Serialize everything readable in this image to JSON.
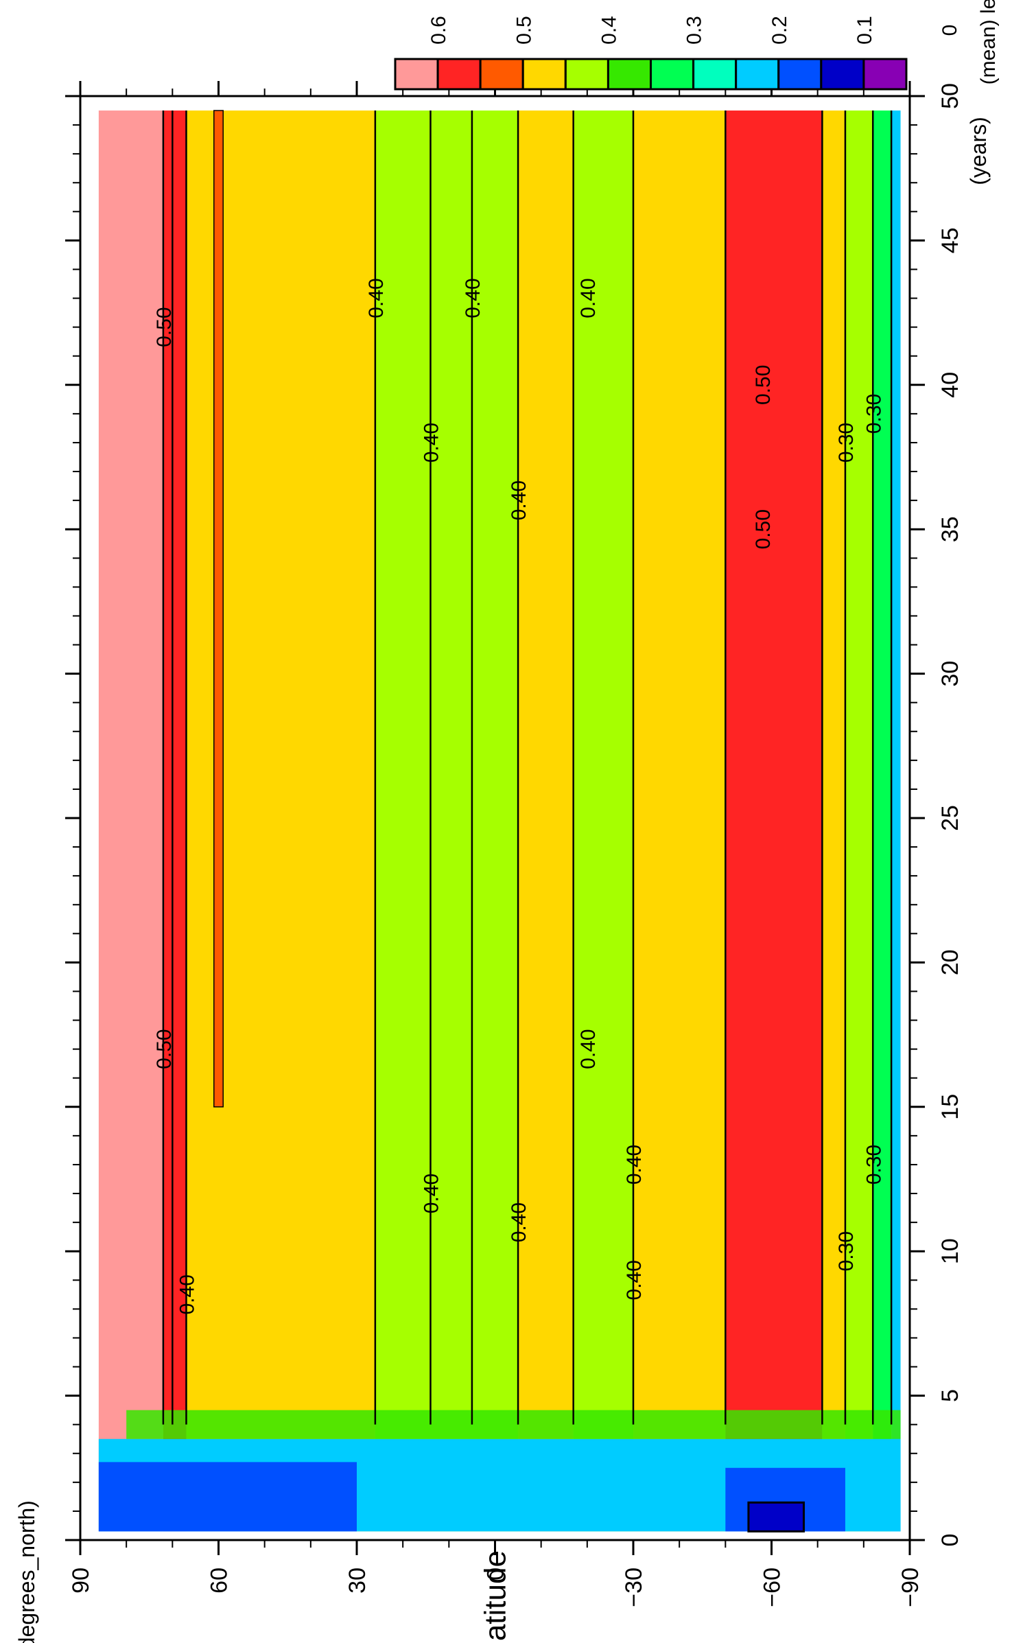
{
  "chart_data": {
    "type": "heatmap",
    "subtype": "filled-contour",
    "orientation": "rotated-90-clockwise",
    "xlabel": "(years)",
    "ylabel": "latitude",
    "yunits": "(degrees_north)",
    "colorbar_title": "(mean) le",
    "xlim": [
      0,
      50
    ],
    "ylim": [
      -90,
      90
    ],
    "x_ticks": [
      0,
      5,
      10,
      15,
      20,
      25,
      30,
      35,
      40,
      45,
      50
    ],
    "x_tick_labels": [
      "0",
      "5",
      "10",
      "15",
      "20",
      "25",
      "30",
      "35",
      "40",
      "45",
      "50"
    ],
    "y_ticks": [
      90,
      60,
      30,
      0,
      -30,
      -60,
      -90
    ],
    "y_tick_labels": [
      "90",
      "60",
      "30",
      "0",
      "−30",
      "−60",
      "−90"
    ],
    "colorbar_levels": [
      "0.6",
      "0.5",
      "0.4",
      "0.3",
      "0.2",
      "0.1",
      "0"
    ],
    "colorbar_colors": [
      "#ff9999",
      "#ff2424",
      "#ff5a00",
      "#ffd800",
      "#a6ff00",
      "#36e800",
      "#00ff52",
      "#00ffbe",
      "#00ccff",
      "#0050ff",
      "#0000c8",
      "#8800b4"
    ],
    "bands": [
      {
        "lat": [
          72,
          86
        ],
        "value": 0.6,
        "note": "pink"
      },
      {
        "lat": [
          67,
          72
        ],
        "value": 0.55,
        "note": "red/orange strip"
      },
      {
        "lat": [
          26,
          67
        ],
        "value": 0.45,
        "note": "yellow"
      },
      {
        "lat": [
          -5,
          26
        ],
        "value": 0.35,
        "note": "yellow-green"
      },
      {
        "lat": [
          -17,
          -5
        ],
        "value": 0.45,
        "note": "yellow"
      },
      {
        "lat": [
          -30,
          -17
        ],
        "value": 0.35,
        "note": "yellow-green"
      },
      {
        "lat": [
          -50,
          -30
        ],
        "value": 0.45,
        "note": "yellow"
      },
      {
        "lat": [
          -71,
          -50
        ],
        "value": 0.55,
        "note": "orange"
      },
      {
        "lat": [
          -76,
          -71
        ],
        "value": 0.45,
        "note": "yellow"
      },
      {
        "lat": [
          -82,
          -76
        ],
        "value": 0.35,
        "note": "yellow-green"
      },
      {
        "lat": [
          -86,
          -82
        ],
        "value": 0.25,
        "note": "green"
      },
      {
        "lat": [
          -88,
          -86
        ],
        "value": 0.15,
        "note": "cyan"
      }
    ],
    "early_years_region": {
      "years": [
        0,
        3.5
      ],
      "value_range": [
        0.1,
        0.3
      ],
      "note": "blue/cyan at first years"
    },
    "contour_labels": [
      "0.50",
      "0.50",
      "0.40",
      "0.40",
      "0.40",
      "0.40",
      "0.40",
      "0.40",
      "0.40",
      "0.40",
      "0.40",
      "0.40",
      "0.40",
      "0.50",
      "0.50",
      "0.30",
      "0.30",
      "0.30",
      "0.30"
    ],
    "grid": false,
    "legend_position": "top"
  }
}
